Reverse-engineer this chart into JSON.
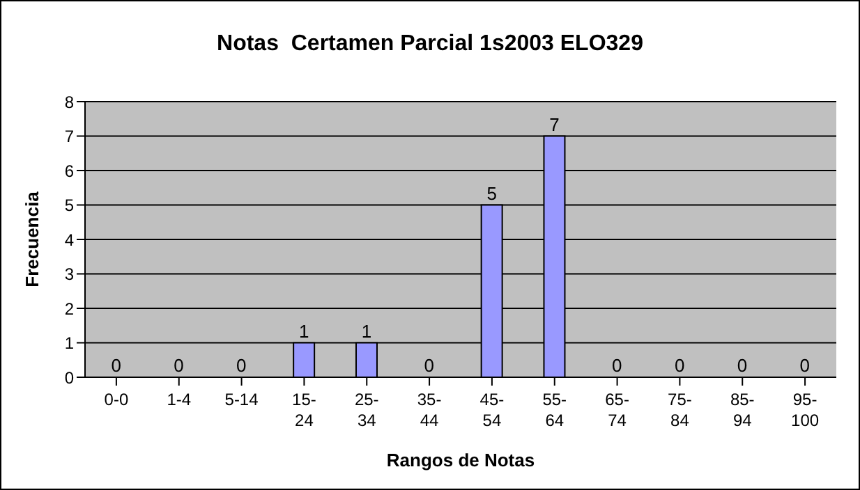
{
  "chart_data": {
    "type": "bar",
    "title": "Notas  Certamen Parcial 1s2003 ELO329",
    "xlabel": "Rangos de Notas",
    "ylabel": "Frecuencia",
    "categories": [
      "0-0",
      "1-4",
      "5-14",
      "15-24",
      "25-34",
      "35-44",
      "45-54",
      "55-64",
      "65-74",
      "75-84",
      "85-94",
      "95-100"
    ],
    "values": [
      0,
      0,
      0,
      1,
      1,
      0,
      5,
      7,
      0,
      0,
      0,
      0
    ],
    "color": "#9999ff",
    "ylim": [
      0,
      8
    ],
    "yticks": [
      0,
      1,
      2,
      3,
      4,
      5,
      6,
      7,
      8
    ],
    "grid": "y",
    "data_labels": true
  }
}
